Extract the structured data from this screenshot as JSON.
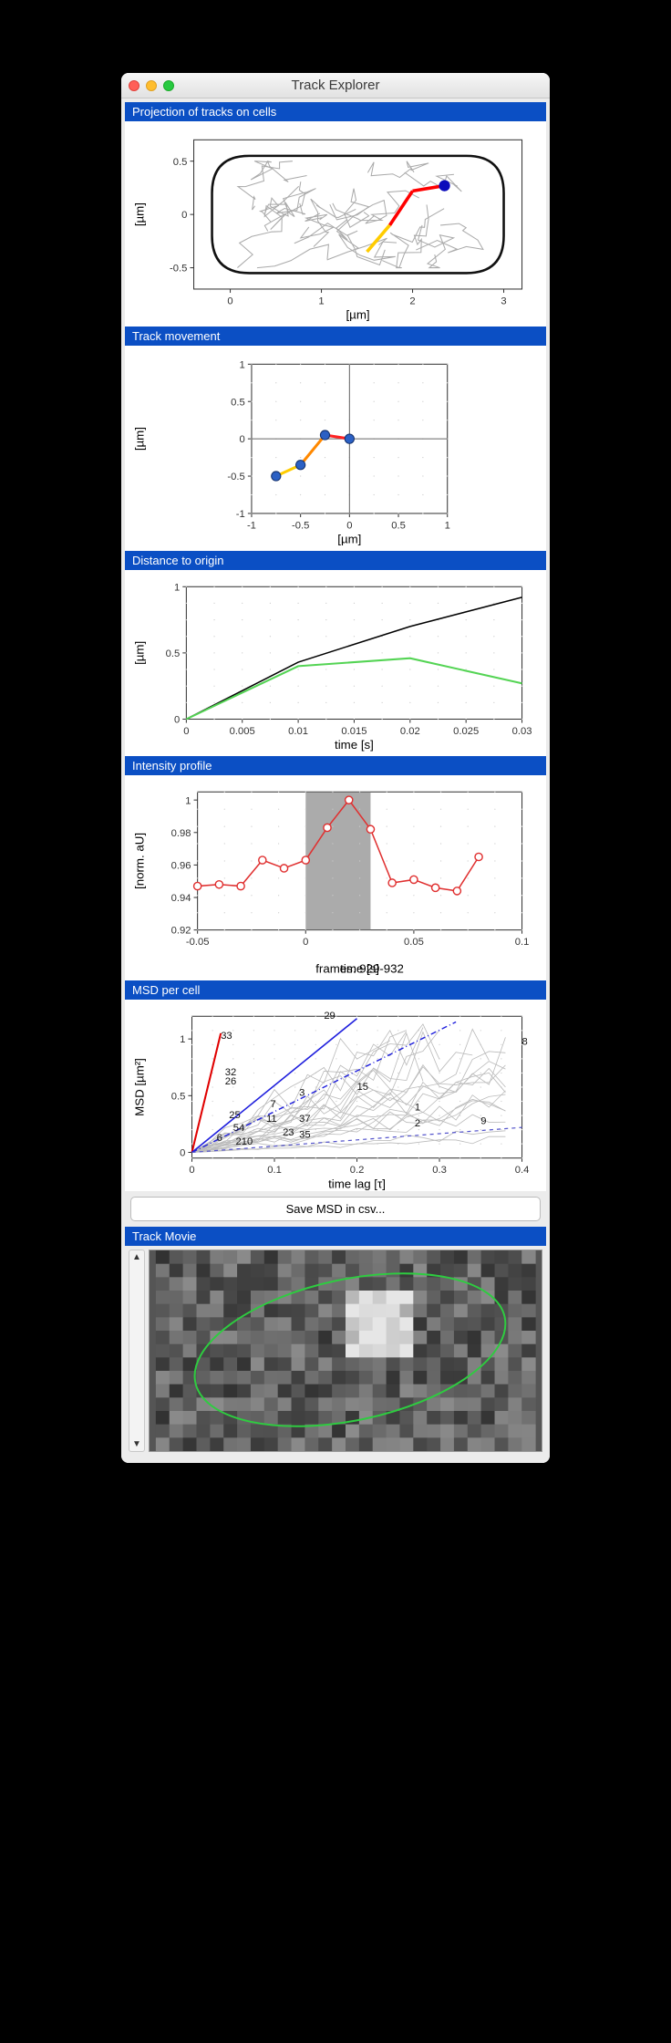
{
  "window": {
    "title": "Track Explorer"
  },
  "sections": {
    "s1": {
      "title": "Projection of tracks on cells",
      "xlabel": "[µm]",
      "ylabel": "[µm]",
      "xticks": [
        0,
        1,
        2,
        3
      ],
      "yticks": [
        -0.5,
        0,
        0.5
      ],
      "xlim": [
        -0.4,
        3.2
      ],
      "ylim": [
        -0.7,
        0.7
      ],
      "cell_color": "#111",
      "track_color": "#aaa",
      "highlight_start": "#ffcc00",
      "highlight_end": "#ff0000",
      "endpoint": "#0b0bbb"
    },
    "s2": {
      "title": "Track movement",
      "xlabel": "[µm]",
      "ylabel": "[µm]",
      "xticks": [
        -1,
        -0.5,
        0,
        0.5,
        1
      ],
      "yticks": [
        -1,
        -0.5,
        0,
        0.5,
        1
      ],
      "xlim": [
        -1,
        1
      ],
      "ylim": [
        -1,
        1
      ],
      "points": [
        [
          -0.75,
          -0.5
        ],
        [
          -0.5,
          -0.35
        ],
        [
          -0.25,
          0.05
        ],
        [
          0,
          0
        ]
      ],
      "point_color": "#2b60c4",
      "line_grad_start": "#ffcc00",
      "line_grad_end": "#ff2222"
    },
    "s3": {
      "title": "Distance to origin",
      "xlabel": "time [s]",
      "ylabel": "[µm]",
      "xticks": [
        0,
        0.005,
        0.01,
        0.015,
        0.02,
        0.025,
        0.03
      ],
      "yticks": [
        0,
        0.5,
        1
      ],
      "xlim": [
        0,
        0.03
      ],
      "ylim": [
        0,
        1
      ],
      "black_line": [
        [
          0,
          0
        ],
        [
          0.01,
          0.43
        ],
        [
          0.02,
          0.7
        ],
        [
          0.03,
          0.92
        ]
      ],
      "green_line": [
        [
          0,
          0
        ],
        [
          0.01,
          0.4
        ],
        [
          0.02,
          0.46
        ],
        [
          0.03,
          0.27
        ]
      ],
      "black": "#000",
      "green": "#54d454"
    },
    "s4": {
      "title": "Intensity profile",
      "xlabel": "time [s]",
      "ylabel": "[norm. aU]",
      "bottom_label": "frames: 929-932",
      "xticks": [
        -0.05,
        0,
        0.05,
        0.1
      ],
      "yticks": [
        0.92,
        0.94,
        0.96,
        0.98,
        1
      ],
      "xlim": [
        -0.05,
        0.1
      ],
      "ylim": [
        0.92,
        1.005
      ],
      "shade_from": 0,
      "shade_to": 0.03,
      "shade_color": "#888",
      "pts": [
        [
          -0.05,
          0.947
        ],
        [
          -0.04,
          0.948
        ],
        [
          -0.03,
          0.947
        ],
        [
          -0.02,
          0.963
        ],
        [
          -0.01,
          0.958
        ],
        [
          0,
          0.963
        ],
        [
          0.01,
          0.983
        ],
        [
          0.02,
          1.0
        ],
        [
          0.03,
          0.982
        ],
        [
          0.04,
          0.949
        ],
        [
          0.05,
          0.951
        ],
        [
          0.06,
          0.946
        ],
        [
          0.07,
          0.944
        ],
        [
          0.08,
          0.965
        ]
      ],
      "line": "#e03030",
      "marker_stroke": "#e03030",
      "marker_fill": "#fff"
    },
    "s5": {
      "title": "MSD per cell",
      "xlabel": "time lag [τ]",
      "ylabel": "MSD [µm²]",
      "xticks": [
        0,
        0.1,
        0.2,
        0.3,
        0.4
      ],
      "yticks": [
        0,
        0.5,
        1
      ],
      "xlim": [
        0,
        0.4
      ],
      "ylim": [
        -0.05,
        1.2
      ],
      "labels": [
        [
          "33",
          0.035,
          1.0
        ],
        [
          "29",
          0.16,
          1.18
        ],
        [
          "32",
          0.04,
          0.68
        ],
        [
          "26",
          0.04,
          0.6
        ],
        [
          "3",
          0.13,
          0.5
        ],
        [
          "15",
          0.2,
          0.55
        ],
        [
          "7",
          0.095,
          0.4
        ],
        [
          "1",
          0.27,
          0.37
        ],
        [
          "25",
          0.045,
          0.3
        ],
        [
          "11",
          0.09,
          0.27
        ],
        [
          "37",
          0.13,
          0.27
        ],
        [
          "2",
          0.27,
          0.23
        ],
        [
          "9",
          0.35,
          0.25
        ],
        [
          "35",
          0.13,
          0.13
        ],
        [
          "23",
          0.11,
          0.15
        ],
        [
          "8",
          0.4,
          0.95
        ],
        [
          "6",
          0.03,
          0.1
        ],
        [
          "210",
          0.053,
          0.07
        ],
        [
          "54",
          0.05,
          0.19
        ]
      ],
      "red": "#e00000",
      "blue": "#2020dd",
      "gray": "#bbb",
      "dash": "#5555cc",
      "button": "Save MSD in csv..."
    },
    "s6": {
      "title": "Track Movie",
      "outline": "#2ecc40"
    }
  }
}
